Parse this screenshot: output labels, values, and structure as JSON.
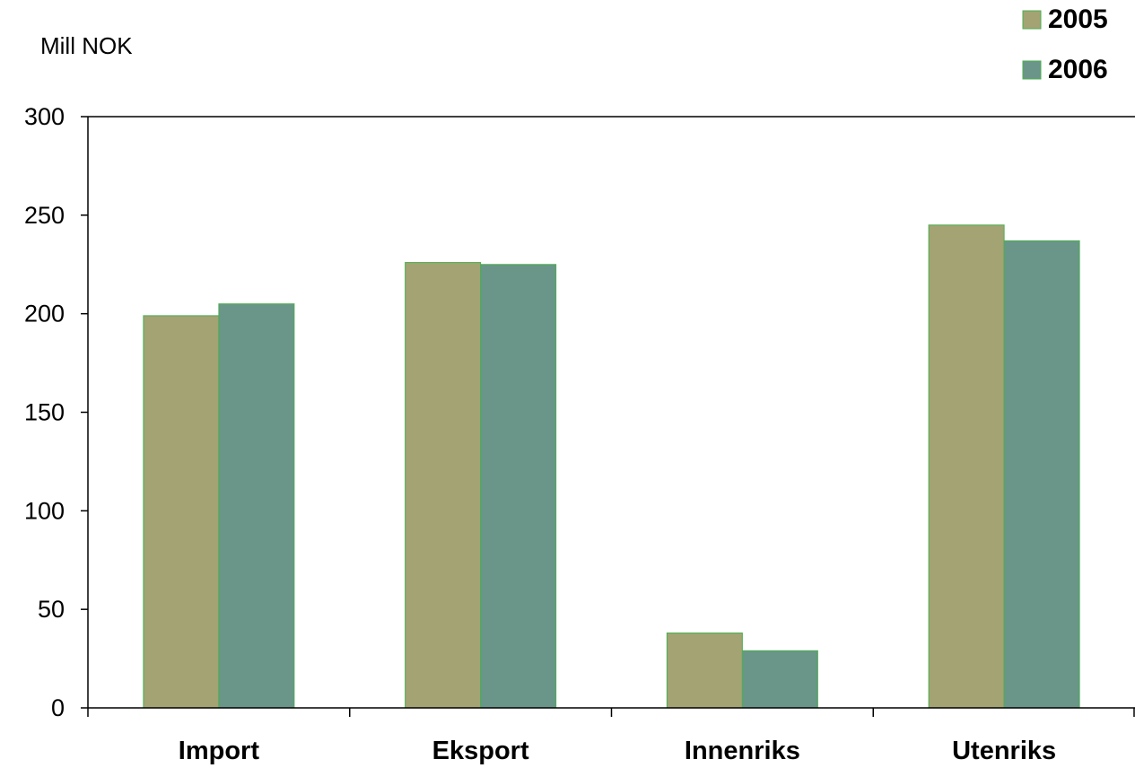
{
  "chart_data": {
    "type": "bar",
    "ylabel": "Mill NOK",
    "categories": [
      "Import",
      "Eksport",
      "Innenriks",
      "Utenriks"
    ],
    "series": [
      {
        "name": "2005",
        "values": [
          199,
          226,
          38,
          245
        ],
        "color": "#a3a373"
      },
      {
        "name": "2006",
        "values": [
          205,
          225,
          29,
          237
        ],
        "color": "#6a9589"
      }
    ],
    "ylim": [
      0,
      300
    ],
    "yticks": [
      "0",
      "50",
      "100",
      "150",
      "200",
      "250",
      "300"
    ],
    "grid": false,
    "legend": "top-right",
    "bar_outline_color": "#4caf50"
  }
}
